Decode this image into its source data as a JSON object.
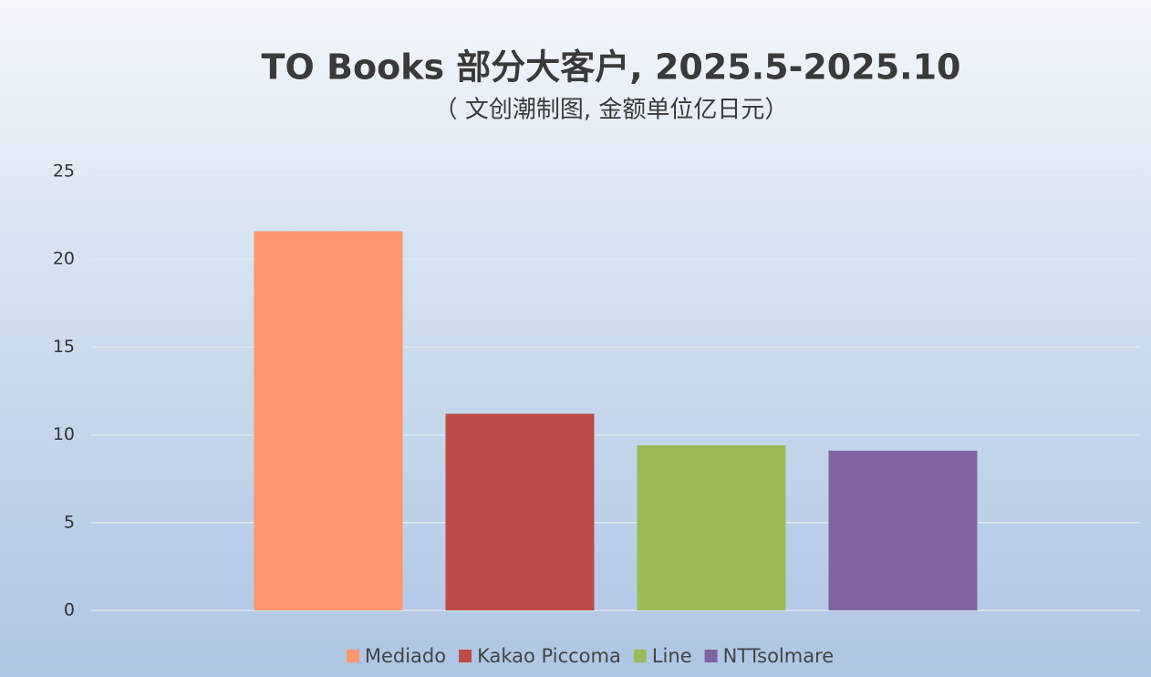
{
  "chart_data": {
    "type": "bar",
    "title": "TO Books 部分大客户, 2025.5-2025.10",
    "subtitle": "（ 文创潮制图, 金额单位亿日元）",
    "categories": [
      null
    ],
    "series": [
      {
        "name": "Mediado",
        "color": "#FF9670",
        "values": [
          21.6
        ]
      },
      {
        "name": "Kakao Piccoma",
        "color": "#BE4B48",
        "values": [
          11.2
        ]
      },
      {
        "name": "Line",
        "color": "#9BBB59",
        "values": [
          9.4
        ]
      },
      {
        "name": "NTTsolmare",
        "color": "#8064A2",
        "values": [
          9.1
        ]
      }
    ],
    "ylim": [
      0,
      25
    ],
    "yticks": [
      0,
      5,
      10,
      15,
      20,
      25
    ],
    "grid": true,
    "legend": "bottom"
  }
}
